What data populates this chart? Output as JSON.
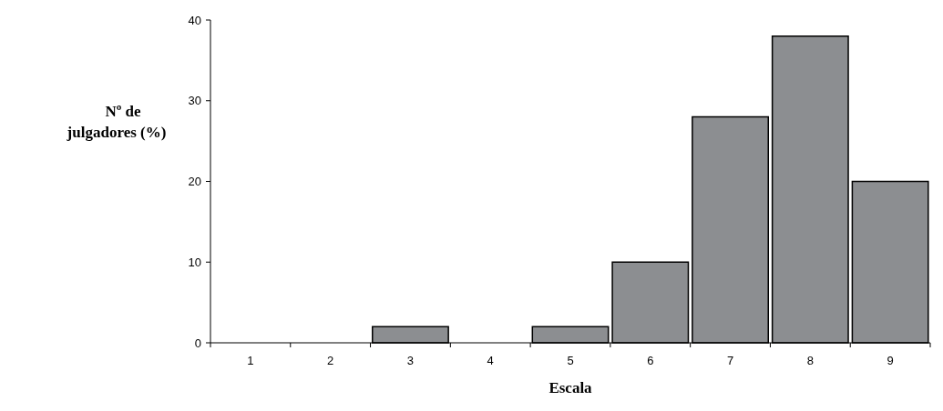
{
  "chart_data": {
    "type": "bar",
    "xlabel": "Escala",
    "ylabel": "Nº de julgadores (%)",
    "categories": [
      "1",
      "2",
      "3",
      "4",
      "5",
      "6",
      "7",
      "8",
      "9"
    ],
    "values": [
      0,
      0,
      2,
      0,
      2,
      10,
      28,
      38,
      20
    ],
    "color": "#8c8e91",
    "ylim": [
      0,
      40
    ],
    "yticks": [
      0,
      10,
      20,
      30,
      40
    ],
    "grid": false
  }
}
